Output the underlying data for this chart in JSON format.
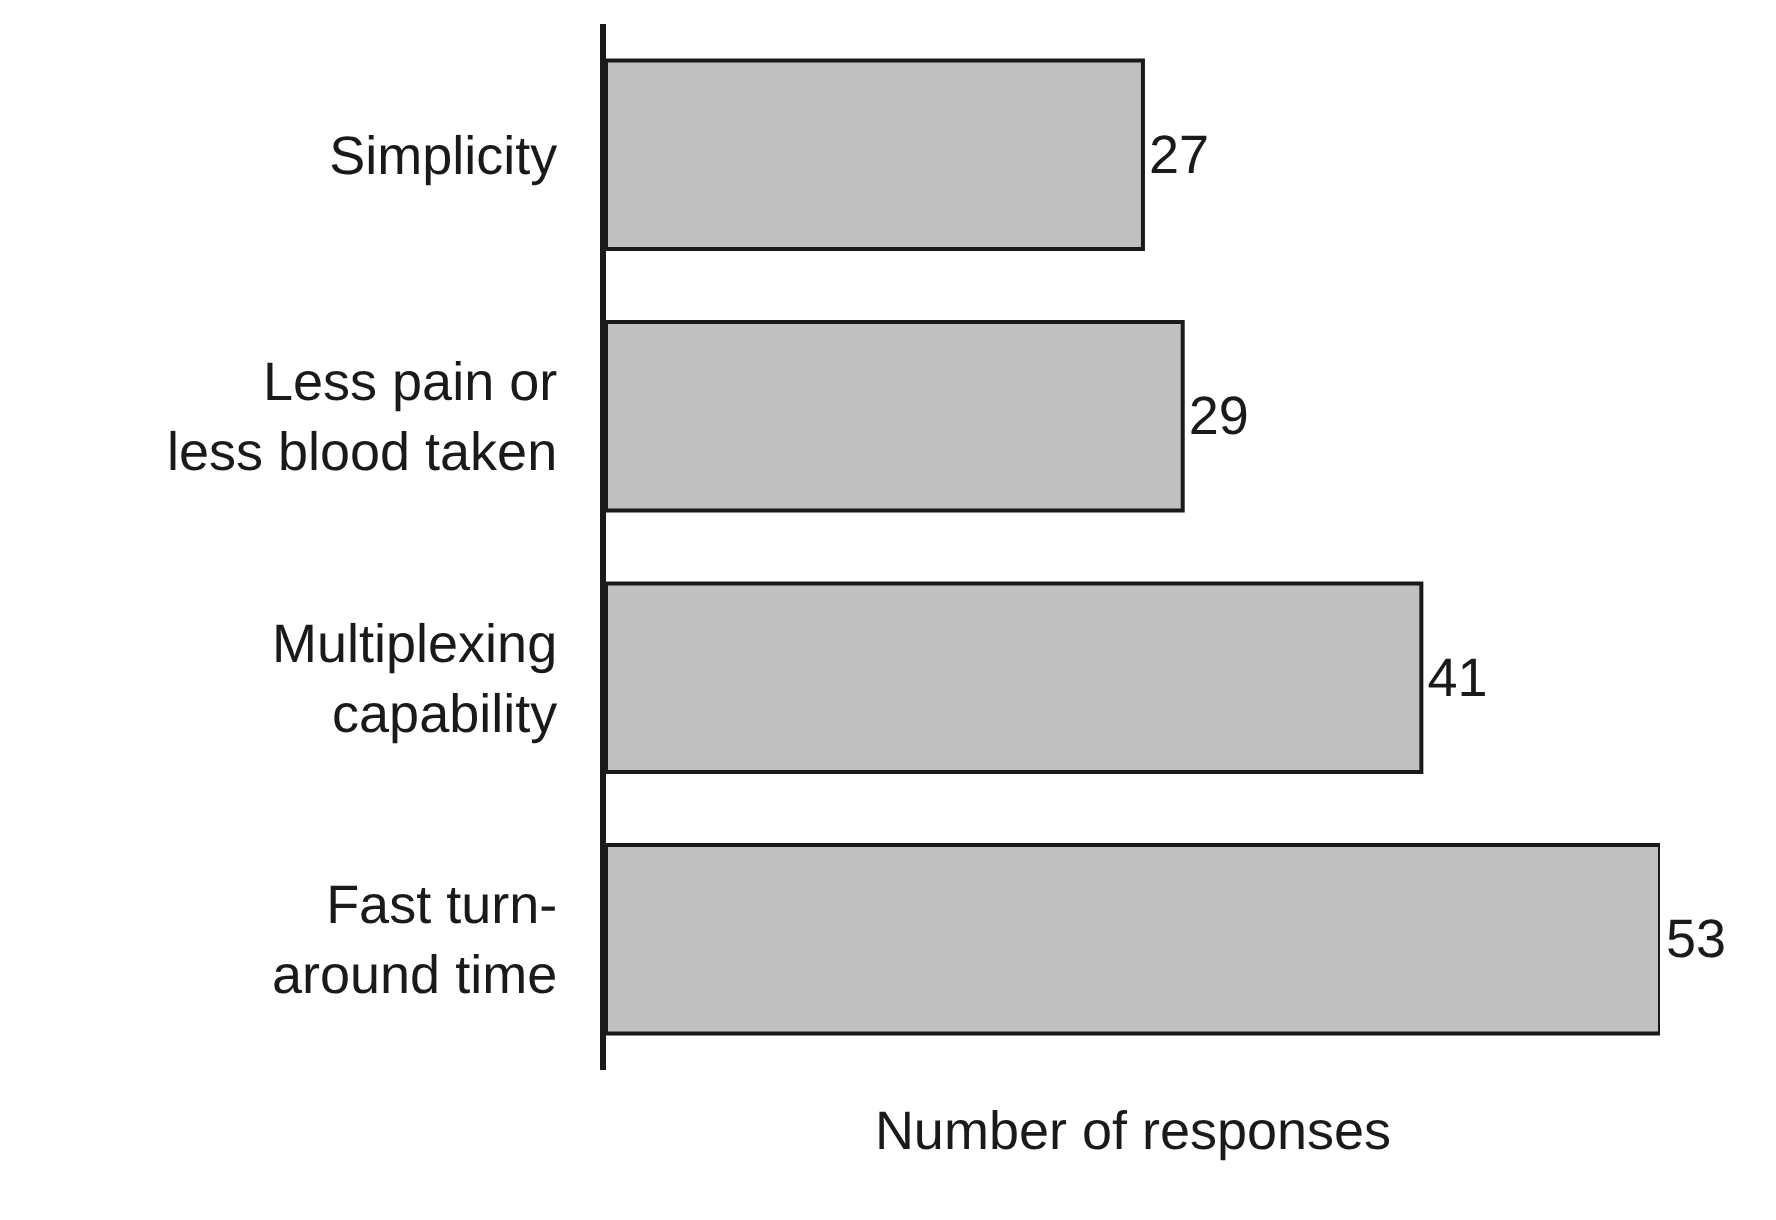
{
  "chart_data": {
    "type": "bar",
    "orientation": "horizontal",
    "xlabel": "Number of responses",
    "categories": [
      "Simplicity",
      "Less pain or\nless blood taken",
      "Multiplexing\ncapability",
      "Fast turn-\naround time"
    ],
    "values": [
      27,
      29,
      41,
      53
    ],
    "color": "#c0c0c0",
    "xlim": [
      0,
      53
    ],
    "tick_labels": "y",
    "data_labels": true,
    "grid": false,
    "legend": false
  }
}
